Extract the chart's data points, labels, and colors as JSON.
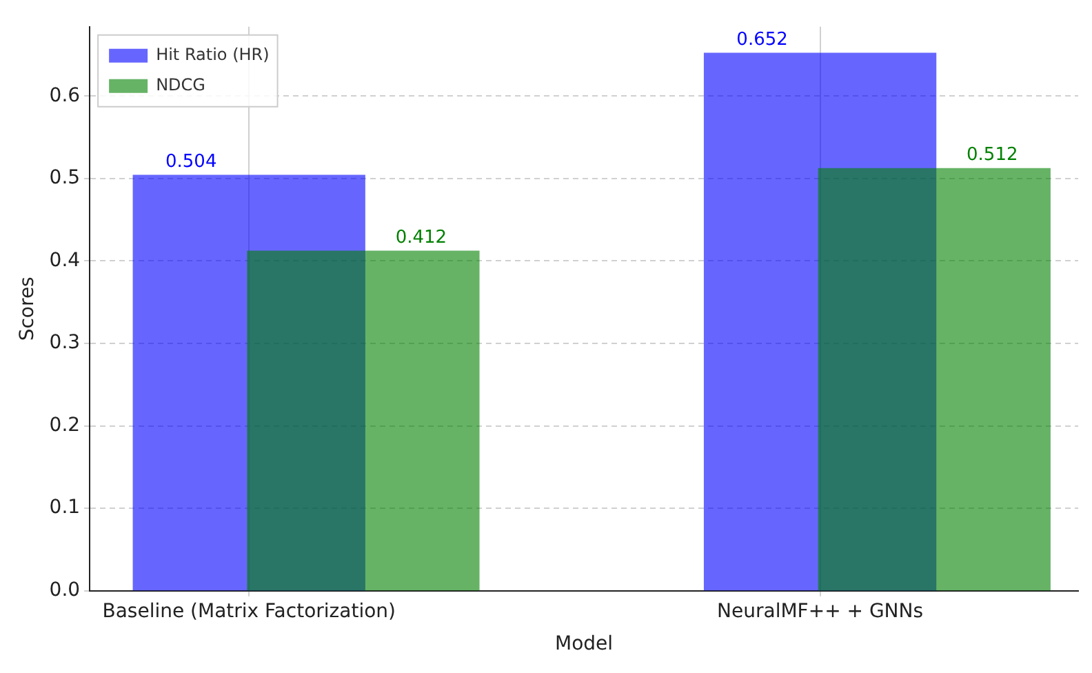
{
  "chart_data": {
    "type": "bar",
    "xlabel": "Model",
    "ylabel": "Scores",
    "categories": [
      "Baseline (Matrix Factorization)",
      "NeuralMF++ + GNNs"
    ],
    "series": [
      {
        "name": "Hit Ratio (HR)",
        "color": "#0000ff",
        "values": [
          0.504,
          0.652
        ]
      },
      {
        "name": "NDCG",
        "color": "#008000",
        "values": [
          0.412,
          0.512
        ]
      }
    ],
    "ylim": [
      0,
      0.684
    ],
    "yticks": [
      {
        "value": 0,
        "label": "0.0"
      },
      0.1,
      0.2,
      0.3,
      0.4,
      0.5,
      0.6
    ],
    "grid": true,
    "legend": "top left",
    "data_labels": true
  }
}
